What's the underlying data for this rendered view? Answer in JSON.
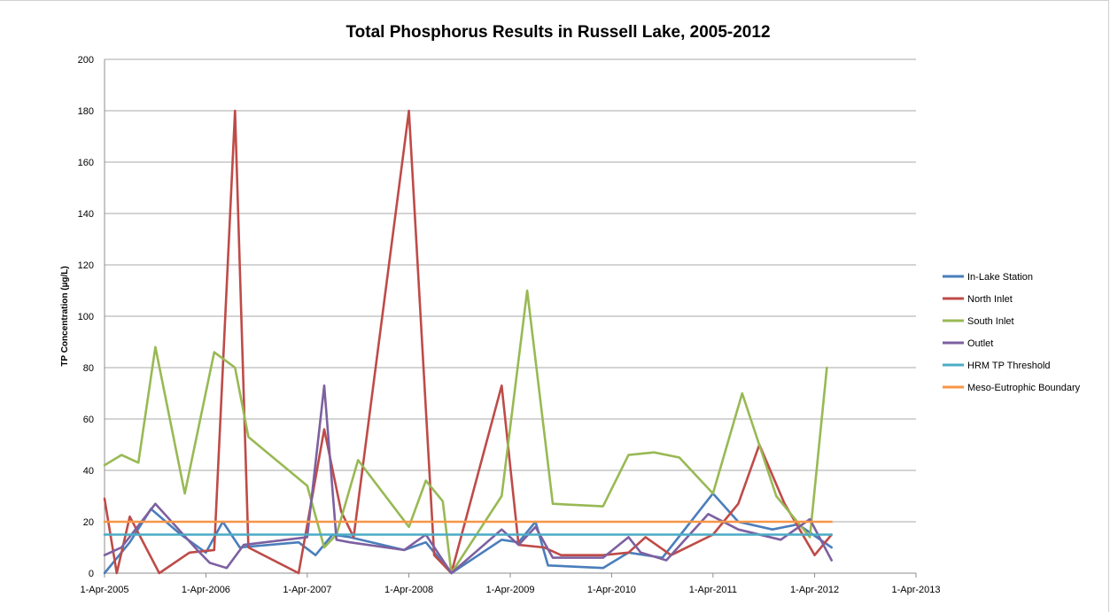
{
  "chart_data": {
    "type": "line",
    "title": "Total Phosphorus Results in Russell Lake, 2005-2012",
    "xlabel": "",
    "ylabel": "TP Concentration (µg/L)",
    "ylim": [
      0,
      200
    ],
    "yticks": [
      0,
      20,
      40,
      60,
      80,
      100,
      120,
      140,
      160,
      180,
      200
    ],
    "xlim": [
      "2005-04-01",
      "2013-04-01"
    ],
    "xticks": [
      {
        "date": "2005-04-01",
        "label": "1-Apr-2005"
      },
      {
        "date": "2006-04-01",
        "label": "1-Apr-2006"
      },
      {
        "date": "2007-04-01",
        "label": "1-Apr-2007"
      },
      {
        "date": "2008-04-01",
        "label": "1-Apr-2008"
      },
      {
        "date": "2009-04-01",
        "label": "1-Apr-2009"
      },
      {
        "date": "2010-04-01",
        "label": "1-Apr-2010"
      },
      {
        "date": "2011-04-01",
        "label": "1-Apr-2011"
      },
      {
        "date": "2012-04-01",
        "label": "1-Apr-2012"
      },
      {
        "date": "2013-04-01",
        "label": "1-Apr-2013"
      }
    ],
    "grid": true,
    "legend_position": "right",
    "series": [
      {
        "name": "In-Lake Station",
        "color": "#4a7ebb",
        "points": [
          [
            "2005-04-01",
            0
          ],
          [
            "2005-07-01",
            12
          ],
          [
            "2005-09-15",
            25
          ],
          [
            "2006-01-01",
            15
          ],
          [
            "2006-04-01",
            8
          ],
          [
            "2006-06-01",
            20
          ],
          [
            "2006-08-01",
            10
          ],
          [
            "2007-03-01",
            12
          ],
          [
            "2007-05-01",
            7
          ],
          [
            "2007-07-01",
            15
          ],
          [
            "2007-09-01",
            14
          ],
          [
            "2008-03-15",
            9
          ],
          [
            "2008-06-01",
            12
          ],
          [
            "2008-09-01",
            0
          ],
          [
            "2009-03-01",
            13
          ],
          [
            "2009-05-01",
            12
          ],
          [
            "2009-07-01",
            20
          ],
          [
            "2009-08-15",
            3
          ],
          [
            "2010-03-01",
            2
          ],
          [
            "2010-06-01",
            8
          ],
          [
            "2010-10-01",
            6
          ],
          [
            "2011-04-01",
            31
          ],
          [
            "2011-07-01",
            20
          ],
          [
            "2011-11-01",
            17
          ],
          [
            "2012-02-01",
            19
          ],
          [
            "2012-06-01",
            10
          ]
        ]
      },
      {
        "name": "North Inlet",
        "color": "#be4b48",
        "points": [
          [
            "2005-04-01",
            29
          ],
          [
            "2005-05-15",
            0
          ],
          [
            "2005-07-01",
            22
          ],
          [
            "2005-10-15",
            0
          ],
          [
            "2006-02-01",
            8
          ],
          [
            "2006-05-01",
            9
          ],
          [
            "2006-07-15",
            180
          ],
          [
            "2006-09-01",
            10
          ],
          [
            "2007-03-01",
            0
          ],
          [
            "2007-06-01",
            56
          ],
          [
            "2007-08-01",
            24
          ],
          [
            "2007-09-15",
            14
          ],
          [
            "2008-04-01",
            180
          ],
          [
            "2008-07-01",
            7
          ],
          [
            "2008-09-01",
            0
          ],
          [
            "2009-03-01",
            73
          ],
          [
            "2009-05-01",
            11
          ],
          [
            "2009-08-01",
            10
          ],
          [
            "2009-10-01",
            7
          ],
          [
            "2010-03-01",
            7
          ],
          [
            "2010-06-01",
            8
          ],
          [
            "2010-08-01",
            14
          ],
          [
            "2010-11-01",
            7
          ],
          [
            "2011-04-01",
            15
          ],
          [
            "2011-07-01",
            27
          ],
          [
            "2011-09-15",
            50
          ],
          [
            "2011-12-15",
            27
          ],
          [
            "2012-04-01",
            7
          ],
          [
            "2012-06-01",
            15
          ]
        ]
      },
      {
        "name": "South Inlet",
        "color": "#98b954",
        "points": [
          [
            "2005-04-01",
            42
          ],
          [
            "2005-06-01",
            46
          ],
          [
            "2005-08-01",
            43
          ],
          [
            "2005-10-01",
            88
          ],
          [
            "2006-01-15",
            31
          ],
          [
            "2006-05-01",
            86
          ],
          [
            "2006-07-15",
            80
          ],
          [
            "2006-09-01",
            53
          ],
          [
            "2007-04-01",
            34
          ],
          [
            "2007-06-01",
            10
          ],
          [
            "2007-07-15",
            15
          ],
          [
            "2007-10-01",
            44
          ],
          [
            "2008-04-01",
            18
          ],
          [
            "2008-06-01",
            36
          ],
          [
            "2008-08-01",
            28
          ],
          [
            "2008-09-01",
            0
          ],
          [
            "2009-03-01",
            30
          ],
          [
            "2009-06-01",
            110
          ],
          [
            "2009-09-01",
            27
          ],
          [
            "2010-03-01",
            26
          ],
          [
            "2010-06-01",
            46
          ],
          [
            "2010-09-01",
            47
          ],
          [
            "2010-12-01",
            45
          ],
          [
            "2011-04-01",
            31
          ],
          [
            "2011-07-15",
            70
          ],
          [
            "2011-11-15",
            30
          ],
          [
            "2012-03-15",
            14
          ],
          [
            "2012-05-15",
            80
          ]
        ]
      },
      {
        "name": "Outlet",
        "color": "#7d60a0",
        "points": [
          [
            "2005-04-01",
            7
          ],
          [
            "2005-06-01",
            10
          ],
          [
            "2005-10-01",
            27
          ],
          [
            "2006-03-01",
            9
          ],
          [
            "2006-04-15",
            4
          ],
          [
            "2006-06-15",
            2
          ],
          [
            "2006-08-15",
            11
          ],
          [
            "2007-04-01",
            14
          ],
          [
            "2007-06-01",
            73
          ],
          [
            "2007-07-15",
            13
          ],
          [
            "2007-09-01",
            12
          ],
          [
            "2008-03-15",
            9
          ],
          [
            "2008-06-01",
            15
          ],
          [
            "2008-09-01",
            0
          ],
          [
            "2009-03-01",
            17
          ],
          [
            "2009-05-01",
            11
          ],
          [
            "2009-07-01",
            18
          ],
          [
            "2009-09-01",
            6
          ],
          [
            "2010-03-01",
            6
          ],
          [
            "2010-06-01",
            14
          ],
          [
            "2010-07-15",
            8
          ],
          [
            "2010-10-15",
            5
          ],
          [
            "2011-03-15",
            23
          ],
          [
            "2011-07-01",
            17
          ],
          [
            "2011-12-01",
            13
          ],
          [
            "2012-03-15",
            21
          ],
          [
            "2012-06-01",
            5
          ]
        ]
      },
      {
        "name": "HRM TP Threshold",
        "color": "#4bacc6",
        "points": [
          [
            "2005-04-01",
            15
          ],
          [
            "2012-06-01",
            15
          ]
        ]
      },
      {
        "name": "Meso-Eutrophic Boundary",
        "color": "#f79646",
        "points": [
          [
            "2005-04-01",
            20
          ],
          [
            "2012-06-01",
            20
          ]
        ]
      }
    ]
  }
}
